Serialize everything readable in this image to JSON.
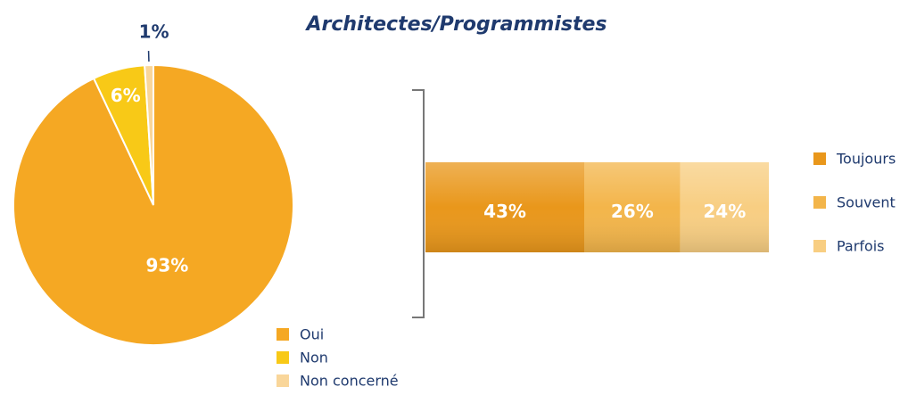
{
  "chart_data": [
    {
      "type": "pie",
      "categories": [
        "Oui",
        "Non",
        "Non concerné"
      ],
      "values": [
        93,
        6,
        1
      ],
      "value_labels": [
        "93%",
        "6%",
        "1%"
      ],
      "colors": [
        "#f5a823",
        "#f8c917",
        "#f9d69a"
      ],
      "legend": "bottom-right"
    },
    {
      "type": "stacked-bar",
      "title": "Architectes/Programmistes",
      "categories": [
        null
      ],
      "series": [
        {
          "name": "Toujours",
          "color": "#e9971b",
          "values": [
            43
          ],
          "value_labels": [
            "43%"
          ]
        },
        {
          "name": "Souvent",
          "color": "#f3b54a",
          "values": [
            26
          ],
          "value_labels": [
            "26%"
          ]
        },
        {
          "name": "Parfois",
          "color": "#f8ce82",
          "values": [
            24
          ],
          "value_labels": [
            "24%"
          ]
        }
      ],
      "legend": "right"
    }
  ]
}
